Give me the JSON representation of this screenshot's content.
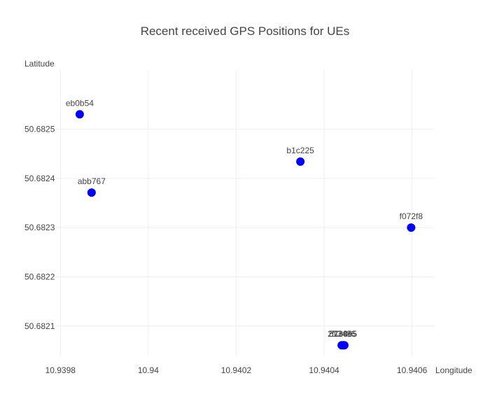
{
  "chart_data": {
    "type": "scatter",
    "title": "Recent received GPS Positions for UEs",
    "xlabel": "Longitude",
    "ylabel": "Latitude",
    "xlim": [
      10.93979,
      10.94065
    ],
    "ylim": [
      50.68204,
      50.68262
    ],
    "x_ticks": [
      10.9398,
      10.94,
      10.9402,
      10.9404,
      10.9406
    ],
    "x_tick_labels": [
      "10.9398",
      "10.94",
      "10.9402",
      "10.9404",
      "10.9406"
    ],
    "y_ticks": [
      50.6821,
      50.6822,
      50.6823,
      50.6824,
      50.6825
    ],
    "y_tick_labels": [
      "50.6821",
      "50.6822",
      "50.6823",
      "50.6824",
      "50.6825"
    ],
    "grid": true,
    "marker_color": "#0000ff",
    "points": [
      {
        "label": "eb0b54",
        "x": 10.939844,
        "y": 50.68253
      },
      {
        "label": "abb767",
        "x": 10.939871,
        "y": 50.682371
      },
      {
        "label": "b1c225",
        "x": 10.940346,
        "y": 50.682434
      },
      {
        "label": "f072f8",
        "x": 10.940598,
        "y": 50.6823
      },
      {
        "label": "213486",
        "x": 10.94044,
        "y": 50.682061
      },
      {
        "label": "573865",
        "x": 10.940443,
        "y": 50.682061
      },
      {
        "label": "f1c4e5",
        "x": 10.940446,
        "y": 50.682061
      }
    ]
  }
}
